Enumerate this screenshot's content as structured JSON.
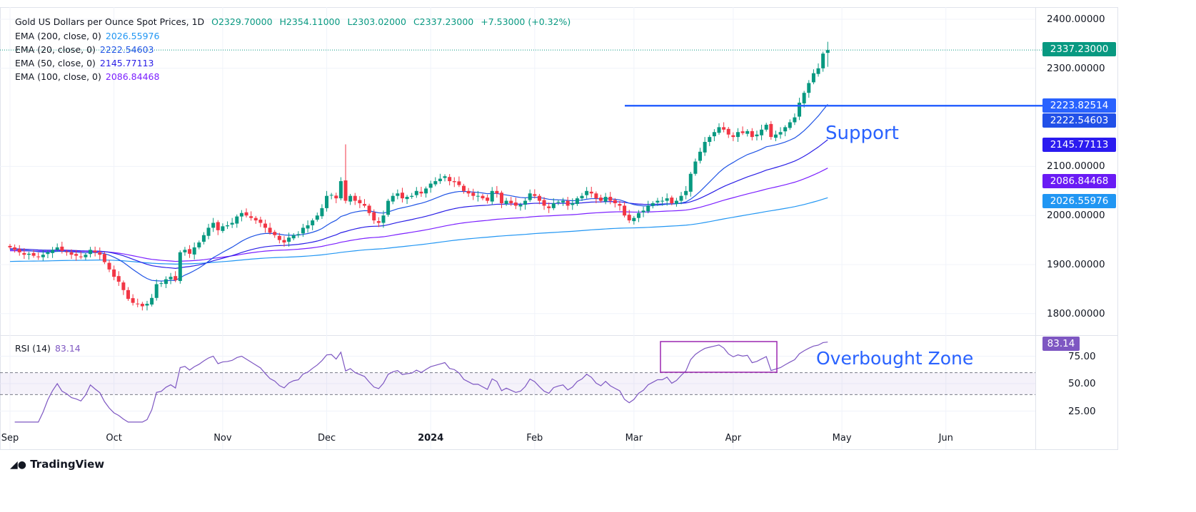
{
  "header": {
    "title": "Gold US Dollars per Ounce Spot Prices, 1D",
    "open": "O2329.70000",
    "high": "H2354.11000",
    "low": "L2303.02000",
    "close": "C2337.23000",
    "change": "+7.53000 (+0.32%)"
  },
  "indicators": [
    {
      "label": "EMA (200, close, 0)",
      "value": "2026.55976",
      "color": "#2196f3"
    },
    {
      "label": "EMA (20, close, 0)",
      "value": "2222.54603",
      "color": "#1e53e5"
    },
    {
      "label": "EMA (50, close, 0)",
      "value": "2145.77113",
      "color": "#2a1ee6"
    },
    {
      "label": "EMA (100, close, 0)",
      "value": "2086.84468",
      "color": "#7b1fff"
    }
  ],
  "rsi": {
    "label": "RSI (14)",
    "value": "83.14",
    "color": "#7e57c2"
  },
  "price_labels": {
    "last": "2337.23000",
    "support": "2223.82514",
    "ema20": "2222.54603",
    "ema50": "2145.77113",
    "ema100": "2086.84468",
    "ema200": "2026.55976"
  },
  "annotations": {
    "support": "Support",
    "overbought": "Overbought Zone"
  },
  "branding": "TradingView",
  "colors": {
    "up": "#089981",
    "down": "#f23645",
    "support": "#2962ff"
  },
  "chart_data": {
    "type": "candlestick",
    "title": "Gold US Dollars per Ounce Spot Prices, 1D",
    "price_ticks": [
      "2400.00000",
      "2300.00000",
      "2100.00000",
      "2000.00000",
      "1900.00000",
      "1800.00000"
    ],
    "price_tick_values": [
      2400,
      2300,
      2100,
      2000,
      1900,
      1800
    ],
    "ylim": [
      1800,
      2400
    ],
    "rsi_ticks": [
      "75.00",
      "50.00",
      "25.00"
    ],
    "rsi_tick_values": [
      75,
      50,
      25
    ],
    "rsi_bands": [
      40,
      60
    ],
    "time_labels": [
      "Sep",
      "Oct",
      "Nov",
      "Dec",
      "2024",
      "Feb",
      "Mar",
      "Apr",
      "May",
      "Jun"
    ],
    "time_label_index": [
      0,
      22,
      45,
      67,
      89,
      111,
      132,
      153,
      176,
      198
    ],
    "support_level": 2223.82514,
    "ema_seed": {
      "ema20": 1930,
      "ema50": 1932,
      "ema100": 1928,
      "ema200": 1906
    },
    "closes": [
      1935,
      1930,
      1925,
      1920,
      1922,
      1918,
      1915,
      1920,
      1925,
      1930,
      1935,
      1928,
      1925,
      1920,
      1918,
      1915,
      1920,
      1930,
      1925,
      1920,
      1905,
      1890,
      1875,
      1865,
      1848,
      1830,
      1822,
      1820,
      1815,
      1820,
      1832,
      1860,
      1862,
      1870,
      1875,
      1868,
      1925,
      1930,
      1922,
      1935,
      1945,
      1960,
      1975,
      1985,
      1970,
      1978,
      1980,
      1985,
      1998,
      2005,
      2000,
      1995,
      1990,
      1985,
      1975,
      1965,
      1960,
      1950,
      1945,
      1955,
      1960,
      1962,
      1975,
      1980,
      1990,
      2000,
      2015,
      2040,
      2042,
      2035,
      2070,
      2030,
      2040,
      2030,
      2025,
      2020,
      2005,
      1990,
      1985,
      2000,
      2030,
      2040,
      2045,
      2035,
      2038,
      2040,
      2050,
      2045,
      2055,
      2065,
      2070,
      2075,
      2080,
      2070,
      2068,
      2062,
      2050,
      2045,
      2040,
      2040,
      2035,
      2030,
      2050,
      2045,
      2025,
      2030,
      2025,
      2020,
      2022,
      2030,
      2045,
      2040,
      2030,
      2020,
      2015,
      2025,
      2028,
      2030,
      2020,
      2025,
      2035,
      2040,
      2050,
      2045,
      2035,
      2030,
      2038,
      2030,
      2025,
      2020,
      2000,
      1990,
      1995,
      2005,
      2010,
      2020,
      2025,
      2030,
      2030,
      2035,
      2025,
      2030,
      2040,
      2050,
      2085,
      2110,
      2130,
      2150,
      2160,
      2170,
      2180,
      2175,
      2165,
      2160,
      2170,
      2168,
      2172,
      2160,
      2165,
      2175,
      2185,
      2160,
      2165,
      2170,
      2180,
      2190,
      2200,
      2230,
      2250,
      2270,
      2290,
      2300,
      2330,
      2337.23
    ]
  }
}
